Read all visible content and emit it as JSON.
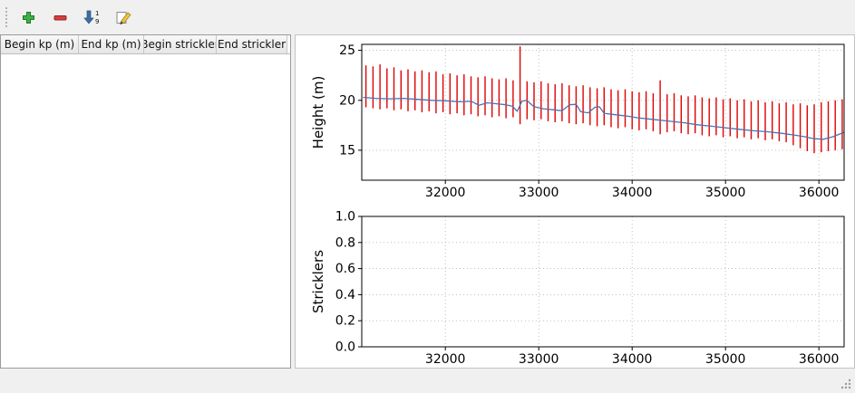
{
  "toolbar": {
    "buttons": [
      {
        "id": "add",
        "icon": "plus-icon"
      },
      {
        "id": "remove",
        "icon": "minus-icon"
      },
      {
        "id": "sort",
        "icon": "sort-ascending-icon"
      },
      {
        "id": "edit",
        "icon": "edit-icon"
      }
    ],
    "sort_numbers": [
      "1",
      "9"
    ],
    "colors": {
      "plus_green": "#3faf46",
      "minus_red": "#d43f3f",
      "arrow_blue": "#3a6ea5",
      "pencil_yellow": "#f0c040"
    }
  },
  "table": {
    "columns": [
      "Begin kp (m)",
      "End kp (m)",
      "Begin strickler",
      "End strickler"
    ],
    "rows": []
  },
  "chart_data": [
    {
      "type": "line",
      "title": "",
      "xlabel": "",
      "ylabel": "Height (m)",
      "xlim": [
        31105,
        36270
      ],
      "ylim": [
        12,
        25.6
      ],
      "xticks": [
        32000,
        33000,
        34000,
        35000,
        36000
      ],
      "xticklabels": [
        "32000",
        "33000",
        "34000",
        "35000",
        "36000"
      ],
      "yticks": [
        15,
        20,
        25
      ],
      "yticklabels": [
        "15",
        "20",
        "25"
      ],
      "grid": true,
      "series": [
        {
          "name": "cross-section-extent-bars",
          "kind": "vbars",
          "color": "#e00000",
          "x": [
            31150,
            31225,
            31300,
            31375,
            31450,
            31525,
            31600,
            31675,
            31750,
            31825,
            31900,
            31975,
            32050,
            32125,
            32200,
            32275,
            32350,
            32425,
            32500,
            32575,
            32650,
            32725,
            32800,
            32875,
            32950,
            33025,
            33100,
            33175,
            33250,
            33325,
            33400,
            33475,
            33550,
            33625,
            33700,
            33775,
            33850,
            33925,
            34000,
            34075,
            34150,
            34225,
            34300,
            34375,
            34450,
            34525,
            34600,
            34675,
            34750,
            34825,
            34900,
            34975,
            35050,
            35125,
            35200,
            35275,
            35350,
            35425,
            35500,
            35575,
            35650,
            35725,
            35800,
            35875,
            35950,
            36025,
            36100,
            36175,
            36250
          ],
          "ymax": [
            23.5,
            23.4,
            23.6,
            23.2,
            23.3,
            23.0,
            23.1,
            22.9,
            23.0,
            22.8,
            22.9,
            22.6,
            22.7,
            22.5,
            22.6,
            22.4,
            22.3,
            22.4,
            22.2,
            22.1,
            22.2,
            22.0,
            25.4,
            21.9,
            21.8,
            21.9,
            21.7,
            21.6,
            21.7,
            21.5,
            21.4,
            21.5,
            21.3,
            21.2,
            21.3,
            21.1,
            21.0,
            21.1,
            20.9,
            20.8,
            20.9,
            20.7,
            22.0,
            20.6,
            20.7,
            20.5,
            20.4,
            20.5,
            20.3,
            20.2,
            20.3,
            20.1,
            20.2,
            20.0,
            20.1,
            19.9,
            20.0,
            19.8,
            19.9,
            19.7,
            19.8,
            19.6,
            19.7,
            19.5,
            19.6,
            19.8,
            19.9,
            20.0,
            20.1
          ],
          "ymin": [
            19.3,
            19.2,
            19.1,
            19.2,
            19.0,
            19.1,
            18.9,
            19.0,
            18.8,
            18.9,
            18.7,
            18.8,
            18.6,
            18.7,
            18.5,
            18.6,
            18.4,
            18.5,
            18.3,
            18.4,
            18.2,
            18.3,
            17.6,
            18.1,
            18.0,
            18.1,
            17.9,
            17.8,
            17.9,
            17.7,
            17.6,
            17.7,
            17.5,
            17.4,
            17.5,
            17.3,
            17.2,
            17.3,
            17.1,
            17.0,
            17.1,
            16.9,
            16.6,
            16.8,
            16.9,
            16.7,
            16.6,
            16.7,
            16.5,
            16.4,
            16.5,
            16.3,
            16.4,
            16.2,
            16.3,
            16.1,
            16.2,
            16.0,
            16.1,
            15.9,
            15.8,
            15.5,
            15.2,
            14.9,
            14.7,
            14.8,
            14.9,
            15.0,
            15.1
          ]
        },
        {
          "name": "profile-line",
          "kind": "line",
          "color": "#4c72b0",
          "x": [
            31120,
            31250,
            31400,
            31550,
            31700,
            31850,
            32000,
            32150,
            32280,
            32360,
            32450,
            32550,
            32650,
            32720,
            32770,
            32820,
            32870,
            32950,
            33050,
            33150,
            33250,
            33330,
            33400,
            33450,
            33530,
            33600,
            33650,
            33700,
            33780,
            33870,
            33960,
            34060,
            34160,
            34260,
            34360,
            34460,
            34560,
            34700,
            34850,
            35000,
            35150,
            35300,
            35450,
            35600,
            35750,
            35850,
            35950,
            36050,
            36150,
            36270
          ],
          "y": [
            20.3,
            20.2,
            20.15,
            20.2,
            20.1,
            20.0,
            19.95,
            19.85,
            19.9,
            19.5,
            19.75,
            19.65,
            19.55,
            19.4,
            18.9,
            19.9,
            20.0,
            19.35,
            19.15,
            19.05,
            18.95,
            19.55,
            19.6,
            18.85,
            18.75,
            19.3,
            19.35,
            18.7,
            18.6,
            18.5,
            18.4,
            18.25,
            18.15,
            18.05,
            17.95,
            17.85,
            17.75,
            17.55,
            17.4,
            17.25,
            17.1,
            16.95,
            16.85,
            16.7,
            16.5,
            16.35,
            16.15,
            16.1,
            16.35,
            16.8
          ]
        }
      ]
    },
    {
      "type": "line",
      "title": "",
      "xlabel": "",
      "ylabel": "Stricklers",
      "xlim": [
        31105,
        36270
      ],
      "ylim": [
        0,
        1.0
      ],
      "xticks": [
        32000,
        33000,
        34000,
        35000,
        36000
      ],
      "xticklabels": [
        "32000",
        "33000",
        "34000",
        "35000",
        "36000"
      ],
      "yticks": [
        0,
        0.2,
        0.4,
        0.6,
        0.8,
        1.0
      ],
      "yticklabels": [
        "0.0",
        "0.2",
        "0.4",
        "0.6",
        "0.8",
        "1.0"
      ],
      "grid": true,
      "series": []
    }
  ]
}
